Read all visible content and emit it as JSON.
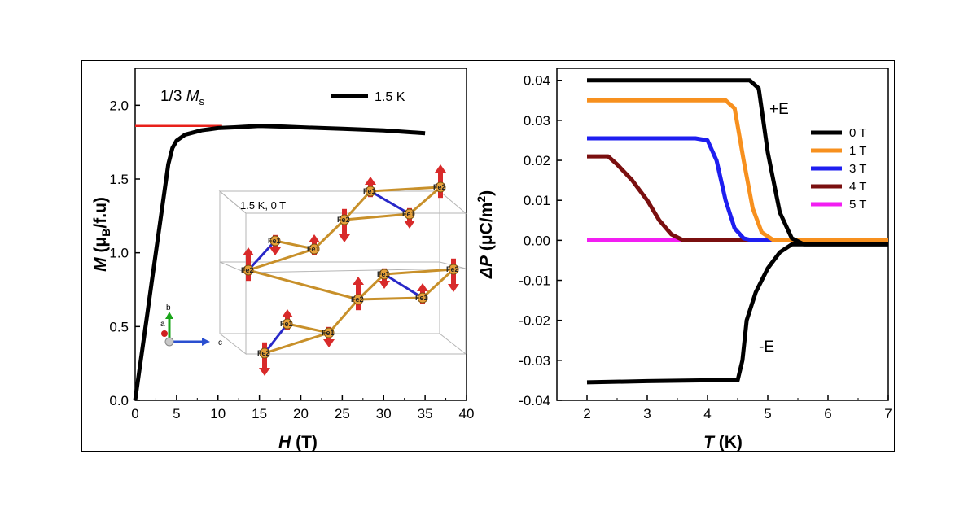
{
  "chart_data": [
    {
      "type": "line",
      "xlabel_italic": "H",
      "xlabel_rest": " (T)",
      "ylabel_italic": "M",
      "ylabel_rest_pre": " (μ",
      "ylabel_sub": "B",
      "ylabel_rest_post": "/f.u)",
      "xlim": [
        0,
        40
      ],
      "ylim": [
        0,
        2.25
      ],
      "xticks": [
        "0",
        "5",
        "10",
        "15",
        "20",
        "25",
        "30",
        "35",
        "40"
      ],
      "yticks": [
        "0.0",
        "0.5",
        "1.0",
        "1.5",
        "2.0"
      ],
      "annotation": {
        "pre": "1/3 ",
        "italic": "M",
        "sub": "s"
      },
      "reference_line": {
        "y": 1.86,
        "x_end": 10.5,
        "color": "#e8201a"
      },
      "series": [
        {
          "name": "1.5 K",
          "color": "#000000",
          "x": [
            0,
            0.5,
            1,
            1.5,
            2,
            2.5,
            3,
            3.5,
            4,
            4.5,
            5,
            6,
            8,
            10,
            12,
            15,
            18,
            20,
            25,
            30,
            35
          ],
          "y": [
            0,
            0.2,
            0.4,
            0.6,
            0.8,
            1.0,
            1.2,
            1.4,
            1.6,
            1.71,
            1.76,
            1.8,
            1.83,
            1.845,
            1.85,
            1.86,
            1.855,
            1.85,
            1.84,
            1.83,
            1.81
          ]
        }
      ],
      "inset": {
        "label": "1.5 K, 0 T",
        "atom_label_a": "Fe2",
        "atom_label_b": "Fe1",
        "axis_b": "b",
        "axis_c": "c",
        "axis_a": "a"
      }
    },
    {
      "type": "line",
      "xlabel_italic": "T",
      "xlabel_rest": " (K)",
      "ylabel_italic": "ΔP",
      "ylabel_rest_pre": " (μC/m",
      "ylabel_sup": "2",
      "ylabel_rest_post": ")",
      "xlim": [
        1.5,
        7
      ],
      "ylim": [
        -0.04,
        0.043
      ],
      "xticks": [
        "2",
        "3",
        "4",
        "5",
        "6",
        "7"
      ],
      "yticks": [
        "0.04",
        "0.03",
        "0.02",
        "0.01",
        "0.00",
        "-0.01",
        "-0.02",
        "-0.03",
        "-0.04"
      ],
      "annotations": [
        "+E",
        "-E"
      ],
      "legend_position": "right",
      "series": [
        {
          "name": "0 T",
          "color": "#000000",
          "x": [
            2,
            3,
            4,
            4.7,
            4.85,
            5.0,
            5.2,
            5.4,
            5.6,
            6,
            7
          ],
          "y": [
            0.04,
            0.04,
            0.04,
            0.04,
            0.038,
            0.022,
            0.007,
            0.0005,
            -0.001,
            -0.001,
            -0.001
          ]
        },
        {
          "name": "0 T (-E)",
          "color": "#000000",
          "x": [
            2,
            3,
            4,
            4.5,
            4.58,
            4.65,
            4.8,
            5.0,
            5.2,
            5.4,
            6,
            7
          ],
          "y": [
            -0.0355,
            -0.0352,
            -0.035,
            -0.035,
            -0.03,
            -0.02,
            -0.013,
            -0.007,
            -0.003,
            -0.001,
            -0.001,
            -0.001
          ]
        },
        {
          "name": "1 T",
          "color": "#f7901e",
          "x": [
            2,
            3,
            4,
            4.3,
            4.45,
            4.6,
            4.75,
            4.9,
            5.1,
            6,
            7
          ],
          "y": [
            0.035,
            0.035,
            0.035,
            0.035,
            0.033,
            0.02,
            0.008,
            0.002,
            0.0,
            0.0,
            0.0
          ]
        },
        {
          "name": "3 T",
          "color": "#1e1ef0",
          "x": [
            2,
            3,
            3.8,
            4.0,
            4.15,
            4.3,
            4.45,
            4.6,
            4.75,
            5,
            7
          ],
          "y": [
            0.0255,
            0.0255,
            0.0255,
            0.025,
            0.02,
            0.01,
            0.003,
            0.0005,
            0.0,
            0.0,
            0.0
          ]
        },
        {
          "name": "4 T",
          "color": "#7a0f0f",
          "x": [
            2,
            2.35,
            2.5,
            2.75,
            3.0,
            3.2,
            3.4,
            3.6,
            4,
            7
          ],
          "y": [
            0.021,
            0.021,
            0.019,
            0.015,
            0.01,
            0.005,
            0.0015,
            0.0,
            0.0,
            0.0
          ]
        },
        {
          "name": "5 T",
          "color": "#f21ef2",
          "x": [
            2,
            3,
            4,
            5,
            6,
            7
          ],
          "y": [
            0.0,
            0.0,
            0.0,
            0.0,
            0.0,
            0.0
          ]
        }
      ],
      "legend": [
        {
          "name": "0 T",
          "color": "#000000"
        },
        {
          "name": "1 T",
          "color": "#f7901e"
        },
        {
          "name": "3 T",
          "color": "#1e1ef0"
        },
        {
          "name": "4 T",
          "color": "#7a0f0f"
        },
        {
          "name": "5 T",
          "color": "#f21ef2"
        }
      ]
    }
  ]
}
